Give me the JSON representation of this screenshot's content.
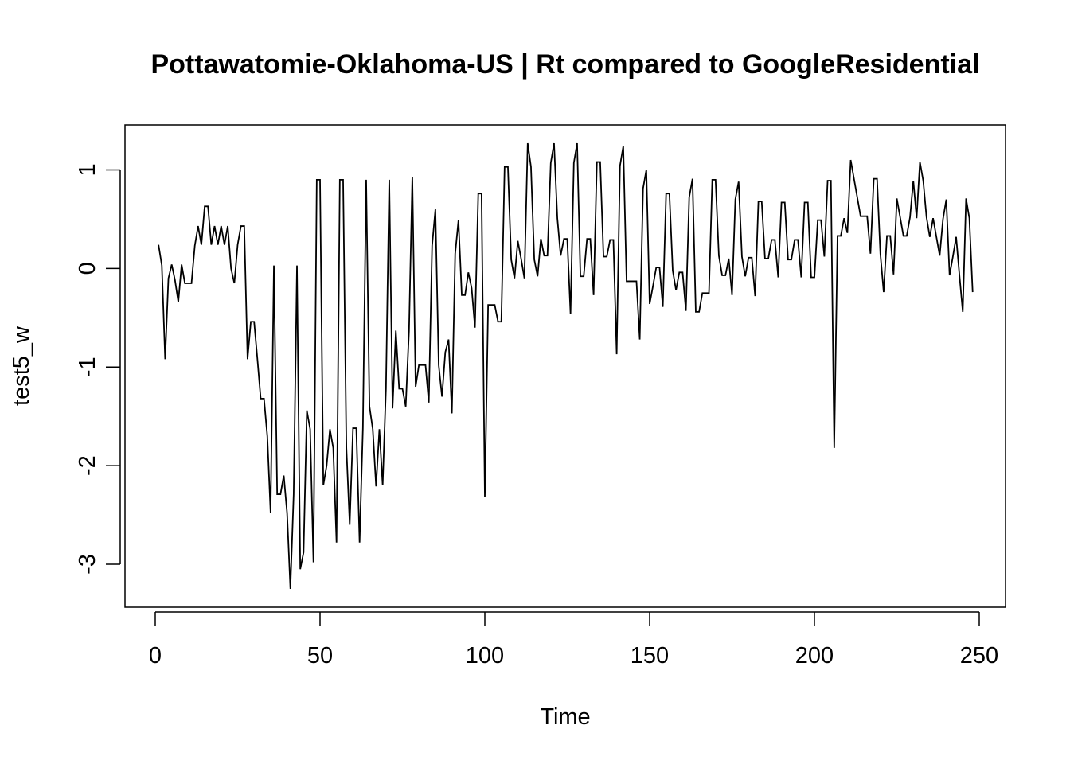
{
  "chart_data": {
    "type": "line",
    "title": "Pottawatomie-Oklahoma-US | Rt compared to GoogleResidential",
    "xlabel": "Time",
    "ylabel": "test5_w",
    "xlim": [
      0,
      250
    ],
    "ylim": [
      -3.25,
      1.27
    ],
    "x_ticks": [
      0,
      50,
      100,
      150,
      200,
      250
    ],
    "y_ticks": [
      1,
      0,
      -1,
      -2,
      -3
    ],
    "x_tick_labels": [
      "0",
      "50",
      "100",
      "150",
      "200",
      "250"
    ],
    "y_tick_labels": [
      "1",
      "0",
      "-1",
      "-2",
      "-3"
    ],
    "grid": false,
    "line_color": "#000000",
    "series": [
      {
        "name": "test5_w",
        "x_start": 1,
        "values": [
          0.24,
          0.03,
          -0.92,
          -0.1,
          0.04,
          -0.12,
          -0.34,
          0.04,
          -0.15,
          -0.15,
          -0.15,
          0.23,
          0.43,
          0.24,
          0.63,
          0.63,
          0.24,
          0.43,
          0.24,
          0.43,
          0.24,
          0.43,
          0.0,
          -0.15,
          0.24,
          0.43,
          0.43,
          -0.92,
          -0.54,
          -0.54,
          -0.92,
          -1.32,
          -1.32,
          -1.7,
          -2.48,
          0.03,
          -2.29,
          -2.29,
          -2.1,
          -2.48,
          -3.25,
          -2.29,
          0.03,
          -3.05,
          -2.88,
          -1.44,
          -1.63,
          -2.98,
          0.9,
          0.9,
          -2.2,
          -2.0,
          -1.63,
          -1.82,
          -2.78,
          0.9,
          0.9,
          -1.82,
          -2.6,
          -1.62,
          -1.62,
          -2.78,
          -1.62,
          0.9,
          -1.4,
          -1.63,
          -2.21,
          -1.63,
          -2.2,
          -1.22,
          0.9,
          -1.42,
          -0.63,
          -1.22,
          -1.22,
          -1.4,
          -0.63,
          0.93,
          -1.2,
          -0.98,
          -0.98,
          -0.98,
          -1.36,
          0.23,
          0.6,
          -0.98,
          -1.3,
          -0.85,
          -0.72,
          -1.47,
          0.15,
          0.49,
          -0.27,
          -0.27,
          -0.04,
          -0.2,
          -0.6,
          0.76,
          0.76,
          -2.32,
          -0.37,
          -0.37,
          -0.37,
          -0.54,
          -0.54,
          1.03,
          1.03,
          0.09,
          -0.1,
          0.28,
          0.1,
          -0.1,
          1.27,
          1.03,
          0.09,
          -0.08,
          0.3,
          0.13,
          0.13,
          1.07,
          1.27,
          0.51,
          0.13,
          0.3,
          0.3,
          -0.46,
          1.07,
          1.27,
          -0.08,
          -0.08,
          0.3,
          0.3,
          -0.27,
          1.08,
          1.08,
          0.12,
          0.12,
          0.29,
          0.29,
          -0.87,
          1.04,
          1.24,
          -0.13,
          -0.13,
          -0.13,
          -0.13,
          -0.72,
          0.81,
          1.0,
          -0.36,
          -0.18,
          0.01,
          0.01,
          -0.39,
          0.76,
          0.76,
          -0.02,
          -0.22,
          -0.04,
          -0.04,
          -0.43,
          0.72,
          0.91,
          -0.44,
          -0.44,
          -0.25,
          -0.25,
          -0.25,
          0.9,
          0.9,
          0.13,
          -0.07,
          -0.07,
          0.1,
          -0.27,
          0.7,
          0.88,
          0.12,
          -0.08,
          0.11,
          0.11,
          -0.28,
          0.68,
          0.68,
          0.1,
          0.1,
          0.29,
          0.29,
          -0.09,
          0.67,
          0.67,
          0.09,
          0.09,
          0.29,
          0.29,
          -0.09,
          0.67,
          0.67,
          -0.09,
          -0.09,
          0.49,
          0.49,
          0.12,
          0.89,
          0.89,
          -1.82,
          0.33,
          0.33,
          0.51,
          0.36,
          1.1,
          0.91,
          0.72,
          0.53,
          0.53,
          0.53,
          0.15,
          0.91,
          0.91,
          0.15,
          -0.24,
          0.33,
          0.33,
          -0.06,
          0.71,
          0.52,
          0.33,
          0.33,
          0.52,
          0.89,
          0.51,
          1.08,
          0.89,
          0.52,
          0.32,
          0.51,
          0.32,
          0.13,
          0.5,
          0.7,
          -0.07,
          0.12,
          0.32,
          -0.07,
          -0.44,
          0.71,
          0.51,
          -0.24
        ]
      }
    ]
  }
}
